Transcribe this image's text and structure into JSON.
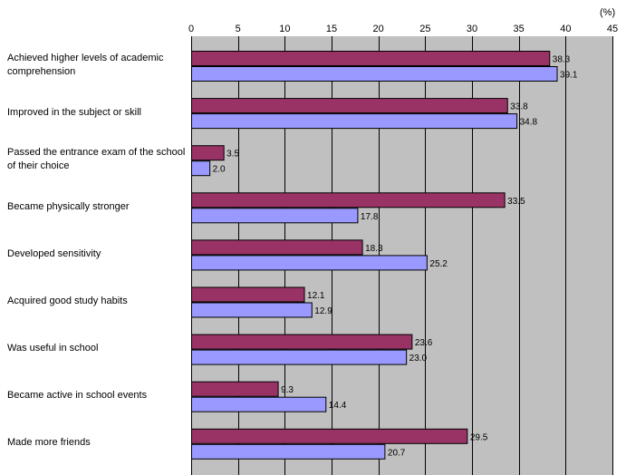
{
  "chart_data": {
    "type": "bar",
    "orientation": "horizontal",
    "unit_label": "(%)",
    "xlim": [
      0,
      45
    ],
    "xticks": [
      0,
      5,
      10,
      15,
      20,
      25,
      30,
      35,
      40,
      45
    ],
    "grid": true,
    "categories": [
      "Achieved higher levels of academic comprehension",
      "Improved in the subject or skill",
      "Passed the entrance exam of the school of their choice",
      "Became physically stronger",
      "Developed sensitivity",
      "Acquired good study habits",
      "Was useful in school",
      "Became active in school events",
      "Made more friends"
    ],
    "series": [
      {
        "color": "#993366",
        "values": [
          38.3,
          33.8,
          3.5,
          33.5,
          18.3,
          12.1,
          23.6,
          9.3,
          29.5
        ],
        "labels": [
          "38.3",
          "33.8",
          "3.5",
          "33.5",
          "18.3",
          "12.1",
          "23.6",
          "9.3",
          "29.5"
        ]
      },
      {
        "color": "#9999ff",
        "values": [
          39.1,
          34.8,
          2.0,
          17.8,
          25.2,
          12.9,
          23.0,
          14.4,
          20.7
        ],
        "labels": [
          "39.1",
          "34.8",
          "2.0",
          "17.8",
          "25.2",
          "12.9",
          "23.0",
          "14.4",
          "20.7"
        ]
      }
    ],
    "plot_background": "#c0c0c0"
  }
}
